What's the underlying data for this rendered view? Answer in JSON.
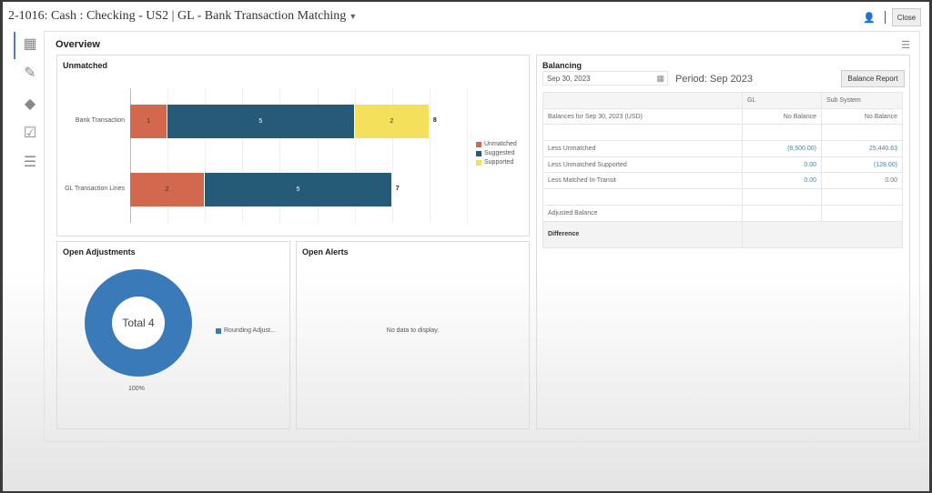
{
  "header": {
    "title": "2-1016: Cash : Checking - US2 | GL - Bank Transaction Matching",
    "close_label": "Close"
  },
  "overview": {
    "title": "Overview"
  },
  "unmatched": {
    "title": "Unmatched"
  },
  "chart_data": {
    "type": "bar",
    "orientation": "horizontal",
    "stacked": true,
    "categories": [
      "Bank Transaction",
      "GL Transaction Lines"
    ],
    "series": [
      {
        "name": "Unmatched",
        "color": "#d2694e",
        "values": [
          1,
          2
        ]
      },
      {
        "name": "Suggested",
        "color": "#265b78",
        "values": [
          5,
          5
        ]
      },
      {
        "name": "Supported",
        "color": "#f4e05a",
        "values": [
          2,
          0
        ]
      }
    ],
    "totals": [
      "8",
      "7"
    ],
    "xlim": [
      0,
      9
    ],
    "grid": true,
    "legend": "right"
  },
  "adjustments": {
    "title": "Open Adjustments",
    "center_label": "Total 4",
    "legend": "Rounding Adjust...",
    "percent": "100%",
    "color": "#3a7ab8"
  },
  "alerts": {
    "title": "Open Alerts",
    "empty": "No data to display."
  },
  "balancing": {
    "title": "Balancing",
    "date": "Sep 30, 2023",
    "period": "Period: Sep 2023",
    "report_button": "Balance Report",
    "columns": [
      "",
      "GL",
      "Sub System"
    ],
    "rows": [
      [
        "Balances for Sep 30, 2023 (USD)",
        "No Balance",
        "No Balance"
      ],
      [
        "",
        "",
        ""
      ],
      [
        "Less Unmatched",
        "(8,500.00)",
        "25,440.63"
      ],
      [
        "Less Unmatched Supported",
        "0.00",
        "(128.00)"
      ],
      [
        "Less Matched In-Transit",
        "0.00",
        "0.00"
      ],
      [
        "",
        "",
        ""
      ],
      [
        "Adjusted Balance",
        "",
        ""
      ]
    ],
    "difference_label": "Difference"
  }
}
